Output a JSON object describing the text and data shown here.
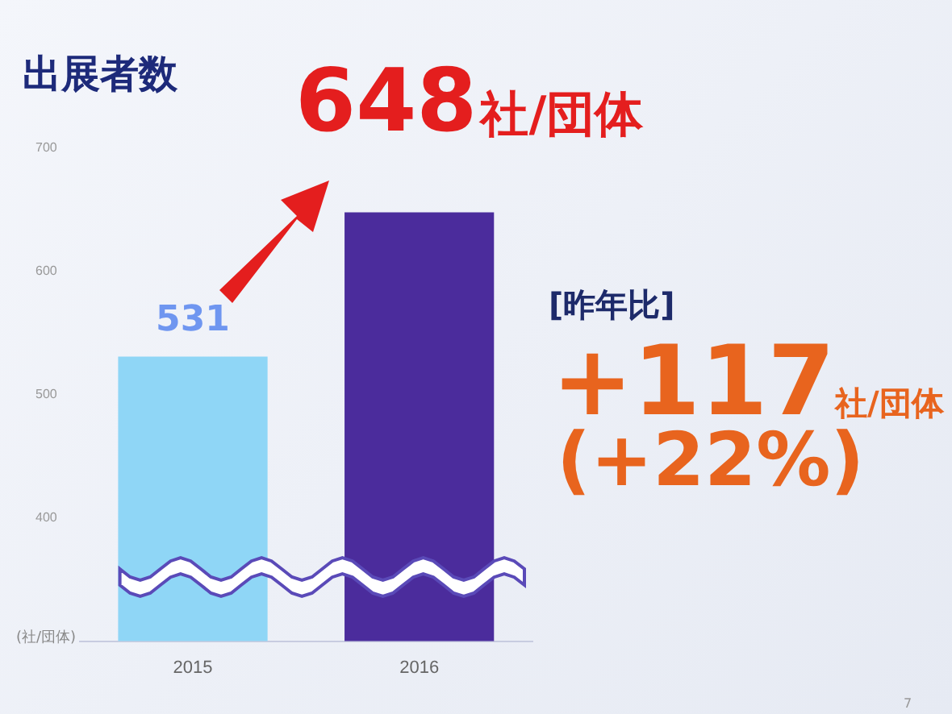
{
  "chart_data": {
    "type": "bar",
    "title": "出展者数",
    "ylabel": "(社/団体)",
    "categories": [
      "2015",
      "2016"
    ],
    "values": [
      531,
      648
    ],
    "colors": [
      "#8fd6f6",
      "#4b2c9c"
    ],
    "value_labels": [
      "531",
      "648社/団体"
    ],
    "ylim": [
      300,
      700
    ],
    "yticks": [
      400,
      500,
      600,
      700
    ],
    "grid": false,
    "legend": false,
    "annotations": [
      "[昨年比]",
      "+117社/団体",
      "(+22%)",
      "7"
    ]
  }
}
